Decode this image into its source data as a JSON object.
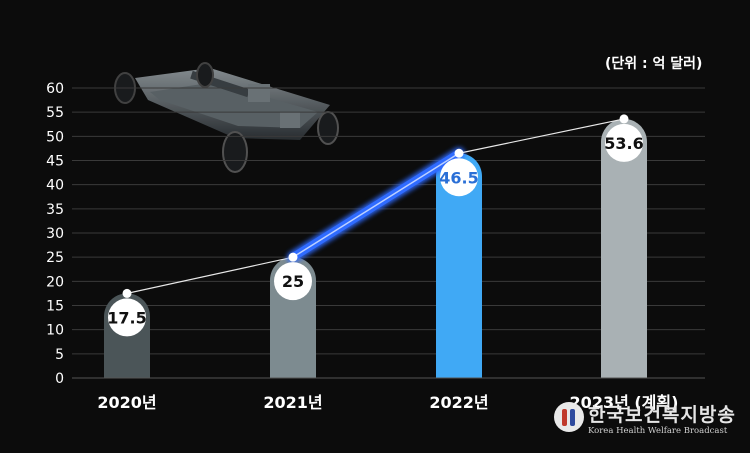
{
  "unit_label": "(단위 : 억 달러)",
  "logo": {
    "korean": "한국보건복지방송",
    "english": "Korea Health Welfare Broadcast"
  },
  "chart_data": {
    "type": "bar",
    "title": "",
    "xlabel": "",
    "ylabel": "",
    "ylim": [
      0,
      60
    ],
    "yticks": [
      0,
      5,
      10,
      15,
      20,
      25,
      30,
      35,
      40,
      45,
      50,
      55,
      60
    ],
    "grid": true,
    "categories": [
      "2020년",
      "2021년",
      "2022년",
      "2023년 (계획)"
    ],
    "values": [
      17.5,
      25,
      46.5,
      53.6
    ],
    "value_labels": [
      "17.5",
      "25",
      "46.5",
      "53.6"
    ],
    "bar_colors": [
      "#4b5558",
      "#7d8b90",
      "#40a9f5",
      "#a9b1b4"
    ],
    "label_colors": [
      "#111111",
      "#111111",
      "#2a6fd6",
      "#111111"
    ],
    "trend_line": true,
    "highlight_segment": [
      1,
      2
    ],
    "highlight_color": "#2f6bff"
  }
}
